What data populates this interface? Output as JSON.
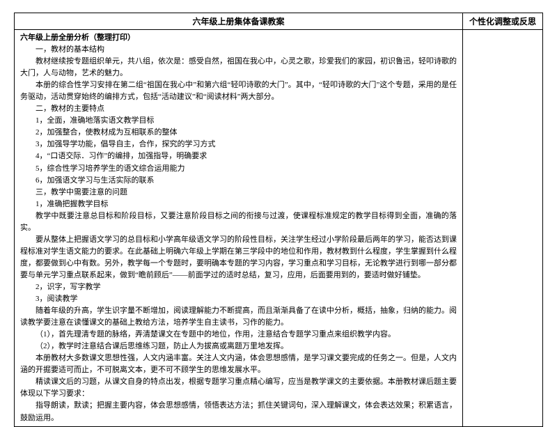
{
  "header": {
    "left": "六年级上册集体备课教案",
    "right": "个性化调整或反思"
  },
  "subtitle": "六年级上册全册分析（整理打印）",
  "paras": [
    "一，教材的基本结构",
    "教材继续按专题组织单元，共八组，依次是：感受自然，祖国在我心中，心灵之歌，珍爱我们的家园，初识鲁迅，轻叩诗歌的大门，人与动物，艺术的魅力。",
    "本册的综合性学习安排在第二组“祖国在我心中”和第六组“轻叩诗歌的大门”。其中，“轻叩诗歌的大门”这个专题，采用的是任务驱动，活动贯穿始终的编排方式，包括“活动建议”和“阅读材料”两大部分。",
    "二，教材的主要特点",
    "1，全面，准确地落实语文教学目标",
    "2，加强整合，使教材成为互相联系的整体",
    "3，加强导学功能，倡导自主，合作，探究的学习方式",
    "4，“口语交际．习作”的编排，加强指导，明确要求",
    "5，综合性学习培养学生的语文综合运用能力",
    "6，加强语文学习与生活实际的联系",
    "三，教学中需要注意的问题",
    "1，准确把握教学目标",
    "教学中既要注意总目标和阶段目标，又要注意阶段目标之间的衔接与过渡，使课程标准规定的教学目标得到全面，准确的落实。",
    "要从整体上把握语文学习的总目标和小学高年级语文学习的阶段性目标，关注学生经过小学阶段最后两年的学习，能否达到课程标准对学生语文能力的要求。在此基础上明确六年级上学期在第三学段中的地位和作用，教材教到什么程度，学生掌握到什么程度，都要做到心中有数。另外，教学每一个专题时，要明确本专题的学习内容，学习重点和学习目标，无论教学进行到哪一部分都要与单元学习重点联系起来，做到“瞻前顾后”——前面学过的适时总结，复习，应用，后面要用到的，要适时做好铺垫。",
    "2，识字，写字教学",
    "3，阅读教学",
    "随着年级的升高，学生识字量不断增加，阅读理解能力不断提高，而且渐渐具备了在读中分析，概括，抽象，归纳的能力。阅读教学要注意在读懂课文的基础上教给方法，培养学生自主读书，习作的能力。",
    "（1），首先理清专题的脉络，弄清楚课文在专题中的地位，作用，注意结合专题学习重点来组织教学内容。",
    "（2），教学时注意结合课后思维练习题，防止人为拔高或离题万里地发挥。",
    "本册教材大多数课文思想性强，人文内涵丰富。关注人文内涵，体会思想感情，是学习课文要完成的任务之一。但是，人文内涵的开掘要适可而止，不可脱离文本，更不可不顾学生的思维发展水平。",
    "精读课文后的习题，从课文自身的特点出发，根据专题学习重点精心编写，应当是教学课文的主要依据。本册教材课后题主要体现以下学习要求：",
    "指导朗读，默读；把握主要内容，体会思想感情，领悟表达方法；抓住关键词句，深入理解课文，体会表达效果；积累语言，鼓励运用。"
  ]
}
